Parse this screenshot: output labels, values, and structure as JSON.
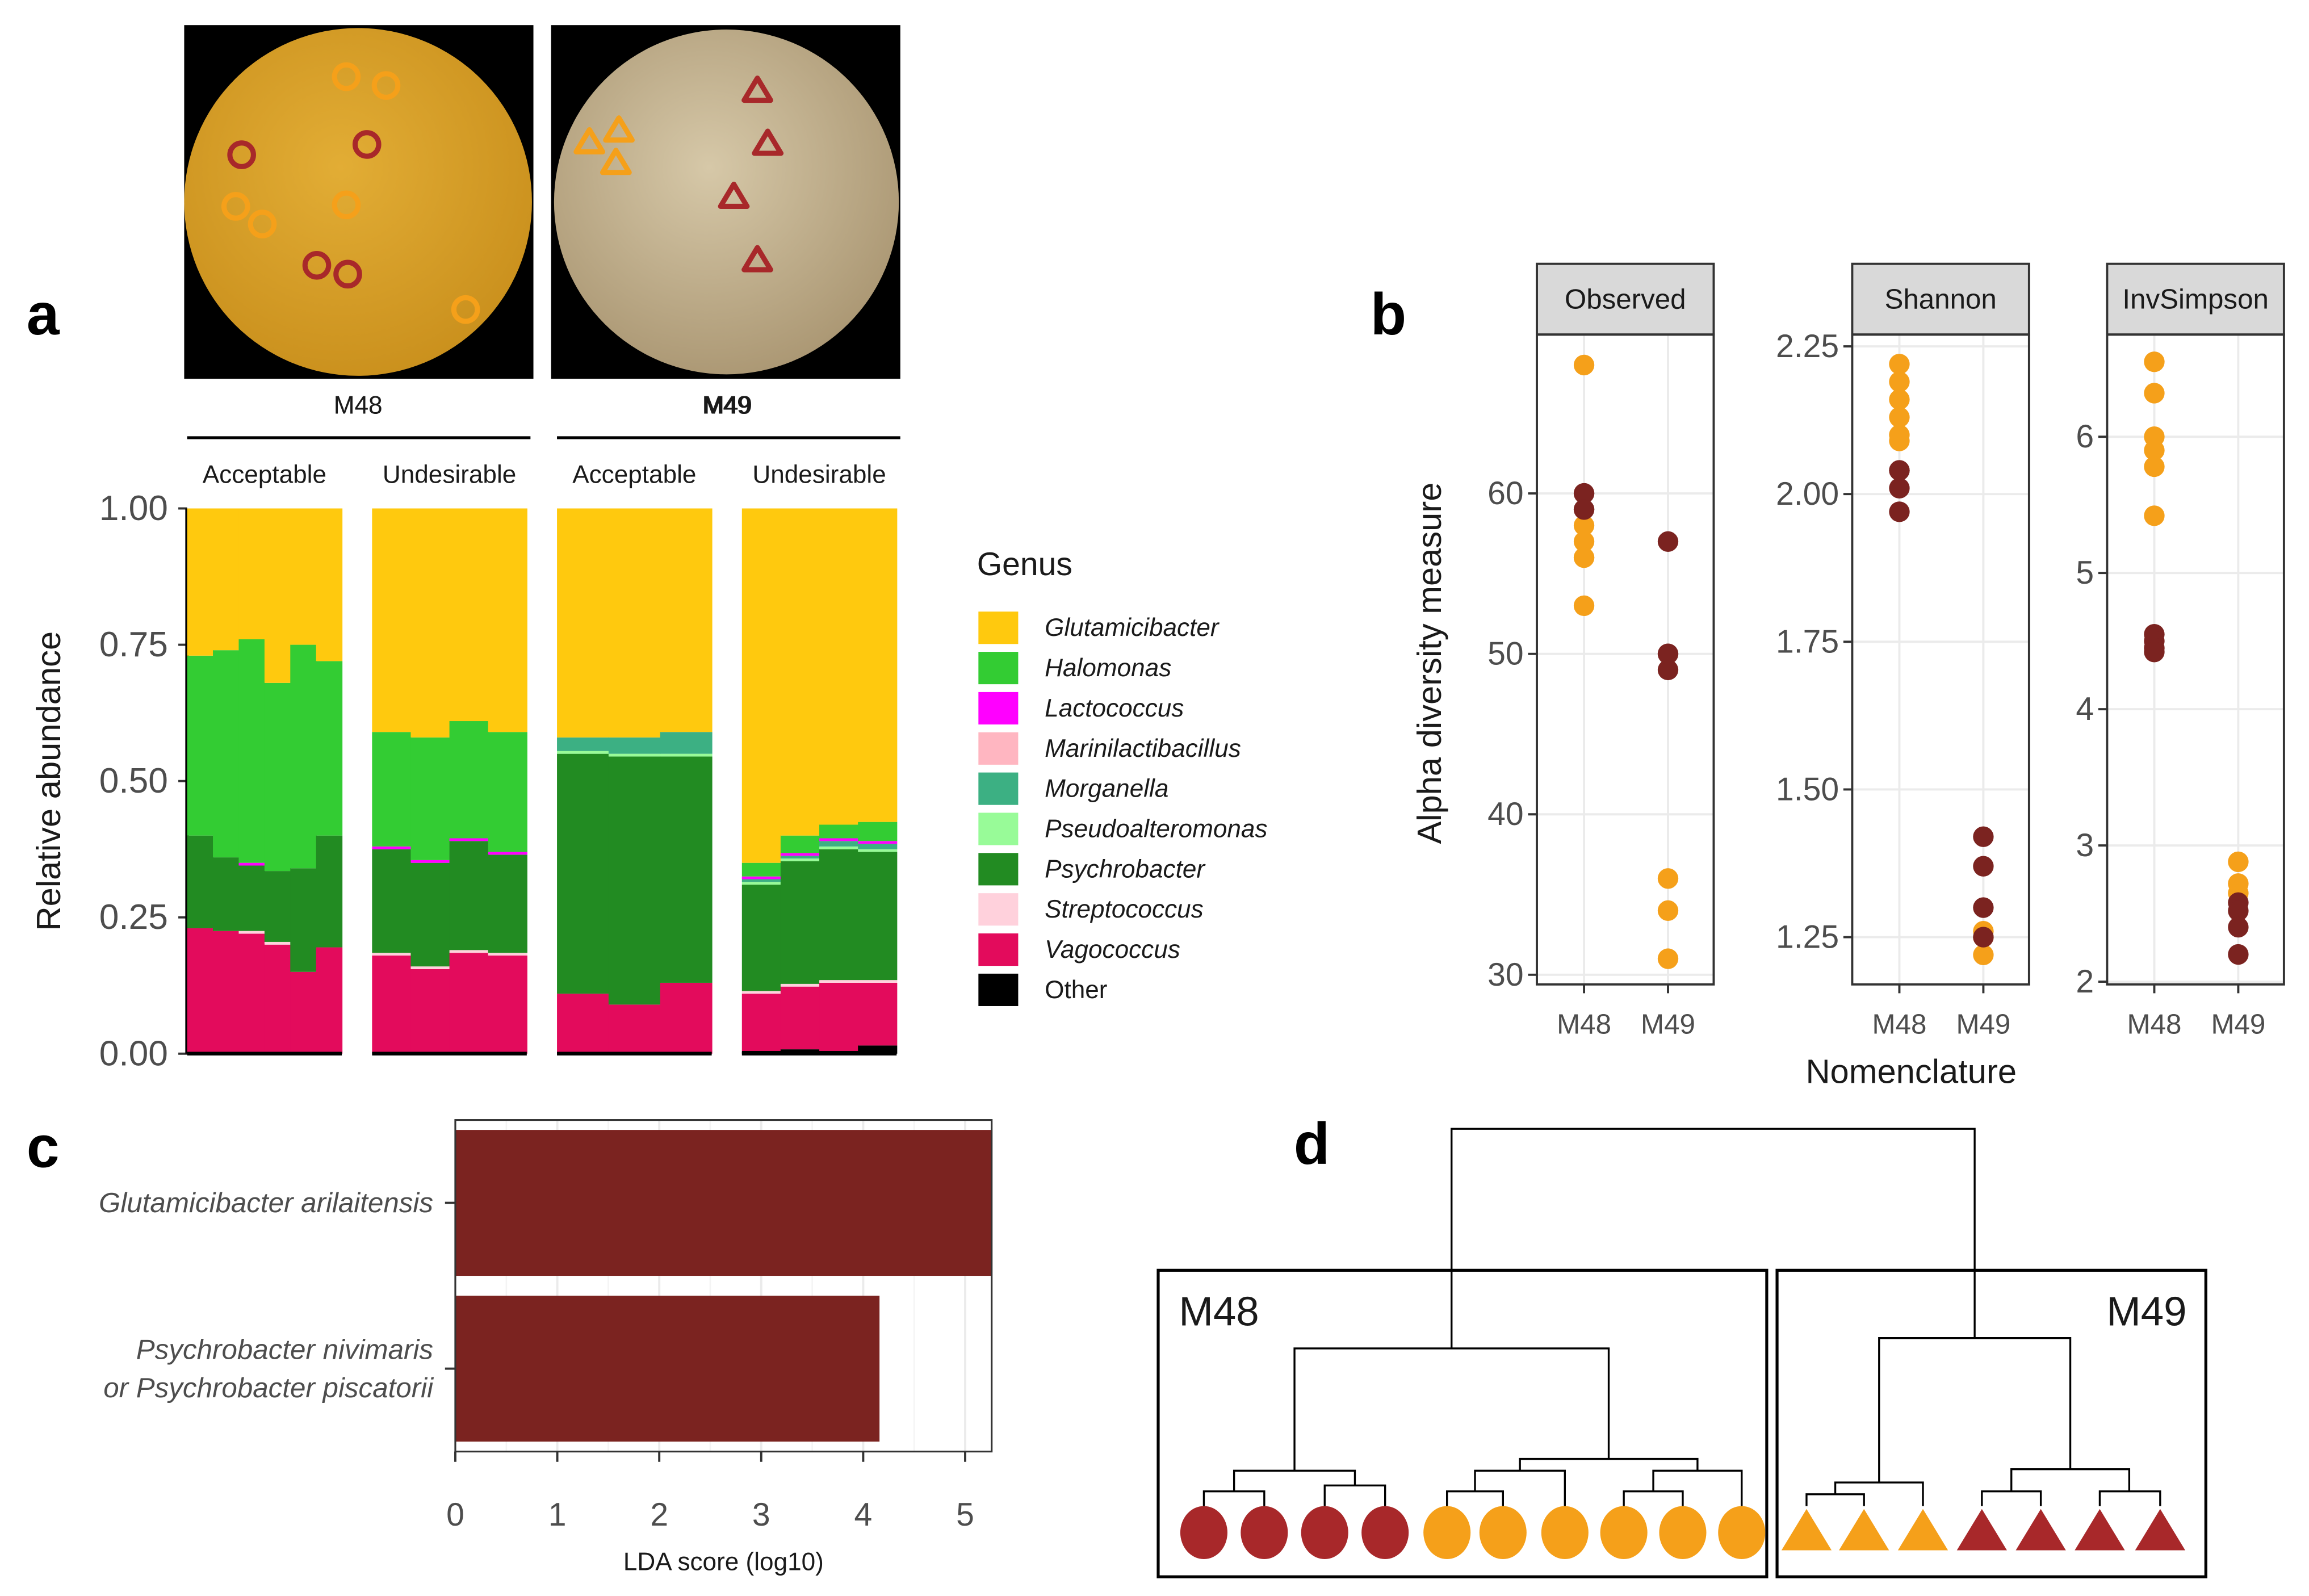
{
  "chart_data": [
    {
      "panel": "a",
      "type": "stacked_bar",
      "ylabel": "Relative abundance",
      "ylim": [
        0,
        1
      ],
      "yticks": [
        {
          "value": 0,
          "label": "0.00"
        },
        0.25,
        {
          "value": 0.5,
          "label": "0.50"
        },
        0.75,
        {
          "value": 1,
          "label": "1.00"
        }
      ],
      "legend_title": "Genus",
      "series": [
        {
          "name": "Glutamicibacter",
          "color": "#ffc90e"
        },
        {
          "name": "Halomonas",
          "color": "#33cc33"
        },
        {
          "name": "Lactococcus",
          "color": "#ff00ff"
        },
        {
          "name": "Marinilactibacillus",
          "color": "#ffb6c1"
        },
        {
          "name": "Morganella",
          "color": "#3cb083"
        },
        {
          "name": "Pseudoalteromonas",
          "color": "#98fb98"
        },
        {
          "name": "Psychrobacter",
          "color": "#228b22"
        },
        {
          "name": "Streptococcus",
          "color": "#ffd1dc"
        },
        {
          "name": "Vagococcus",
          "color": "#e30b5c"
        },
        {
          "name": "Other",
          "color": "#000000"
        }
      ],
      "facets": [
        {
          "label": "M48",
          "panels": [
            {
              "label": "Acceptable",
              "categories": [
                null,
                null,
                null,
                null,
                null,
                null
              ],
              "values": [
                [
                  0.27,
                  0.26,
                  0.24,
                  0.32,
                  0.25,
                  0.28
                ],
                [
                  0.33,
                  0.38,
                  0.41,
                  0.345,
                  0.41,
                  0.32
                ],
                [
                  0,
                  0,
                  0.005,
                  0,
                  0,
                  0
                ],
                [
                  0,
                  0,
                  0,
                  0,
                  0,
                  0
                ],
                [
                  0,
                  0,
                  0,
                  0,
                  0,
                  0
                ],
                [
                  0,
                  0,
                  0,
                  0,
                  0,
                  0
                ],
                [
                  0.17,
                  0.135,
                  0.12,
                  0.13,
                  0.19,
                  0.205
                ],
                [
                  0,
                  0,
                  0.005,
                  0.005,
                  0,
                  0
                ],
                [
                  0.23,
                  0.225,
                  0.22,
                  0.2,
                  0.15,
                  0.195
                ],
                [
                  0,
                  0,
                  0,
                  0,
                  0,
                  0
                ]
              ]
            },
            {
              "label": "Undesirable",
              "categories": [
                null,
                null,
                null,
                null
              ],
              "values": [
                [
                  0.41,
                  0.42,
                  0.39,
                  0.41
                ],
                [
                  0.21,
                  0.225,
                  0.215,
                  0.22
                ],
                [
                  0.005,
                  0.005,
                  0.005,
                  0.005
                ],
                [
                  0,
                  0,
                  0,
                  0
                ],
                [
                  0,
                  0,
                  0,
                  0
                ],
                [
                  0,
                  0,
                  0,
                  0
                ],
                [
                  0.19,
                  0.19,
                  0.2,
                  0.18
                ],
                [
                  0.005,
                  0.005,
                  0.005,
                  0.005
                ],
                [
                  0.18,
                  0.155,
                  0.185,
                  0.18
                ],
                [
                  0,
                  0,
                  0,
                  0
                ]
              ]
            }
          ]
        },
        {
          "label": "M49",
          "panels": [
            {
              "label": "Acceptable",
              "categories": [
                null,
                null,
                null
              ],
              "values": [
                [
                  0.42,
                  0.42,
                  0.41
                ],
                [
                  0,
                  0,
                  0
                ],
                [
                  0,
                  0,
                  0
                ],
                [
                  0,
                  0,
                  0
                ],
                [
                  0.025,
                  0.03,
                  0.04
                ],
                [
                  0.005,
                  0.005,
                  0.005
                ],
                [
                  0.44,
                  0.455,
                  0.415
                ],
                [
                  0,
                  0,
                  0
                ],
                [
                  0.11,
                  0.09,
                  0.13
                ],
                [
                  0,
                  0,
                  0
                ]
              ]
            },
            {
              "label": "Undesirable",
              "categories": [
                null,
                null,
                null,
                null
              ],
              "values": [
                [
                  0.65,
                  0.6,
                  0.58,
                  0.575
                ],
                [
                  0.025,
                  0.032,
                  0.025,
                  0.035
                ],
                [
                  0.005,
                  0.005,
                  0.005,
                  0.005
                ],
                [
                  0,
                  0,
                  0,
                  0
                ],
                [
                  0.005,
                  0.005,
                  0.01,
                  0.01
                ],
                [
                  0.005,
                  0.005,
                  0.005,
                  0.005
                ],
                [
                  0.195,
                  0.225,
                  0.24,
                  0.235
                ],
                [
                  0.005,
                  0.005,
                  0.005,
                  0.005
                ],
                [
                  0.105,
                  0.115,
                  0.125,
                  0.115
                ],
                [
                  0.005,
                  0.008,
                  0.005,
                  0.015
                ]
              ]
            }
          ]
        }
      ]
    },
    {
      "panel": "b",
      "type": "dot",
      "ylabel": "Alpha diversity measure",
      "xlabel": "Nomenclature",
      "categories": [
        "M48",
        "M49"
      ],
      "group_colors": [
        "#f5a01a",
        "#7b2320"
      ],
      "facets": [
        {
          "label": "Observed",
          "ylim": [
            29.4,
            69.9
          ],
          "yticks": [
            30,
            40,
            50,
            60
          ],
          "values": [
            [
              [
                68,
                58,
                57,
                56,
                53,
                56
              ],
              [
                36,
                34,
                31
              ]
            ],
            [
              [
                60,
                59,
                60,
                59
              ],
              [
                57,
                50,
                49,
                50
              ]
            ]
          ]
        },
        {
          "label": "Shannon",
          "ylim": [
            1.17,
            2.27
          ],
          "yticks": [
            {
              "value": 1.25,
              "label": "1.25"
            },
            {
              "value": 1.5,
              "label": "1.50"
            },
            {
              "value": 1.75,
              "label": "1.75"
            },
            {
              "value": 2,
              "label": "2.00"
            },
            {
              "value": 2.25,
              "label": "2.25"
            }
          ],
          "values": [
            [
              [
                2.22,
                2.19,
                2.16,
                2.13,
                2.1,
                2.09
              ],
              [
                1.26,
                1.22,
                1.25
              ]
            ],
            [
              [
                2.04,
                2.01,
                1.97,
                2.04
              ],
              [
                1.42,
                1.37,
                1.3,
                1.25
              ]
            ]
          ]
        },
        {
          "label": "InvSimpson",
          "ylim": [
            1.98,
            6.75
          ],
          "yticks": [
            2,
            3,
            4,
            5,
            6
          ],
          "values": [
            [
              [
                6.55,
                6.32,
                6.0,
                5.9,
                5.78,
                5.42
              ],
              [
                2.88,
                2.72,
                2.65
              ]
            ],
            [
              [
                4.55,
                4.5,
                4.45,
                4.42
              ],
              [
                2.58,
                2.52,
                2.4,
                2.2
              ]
            ]
          ]
        }
      ]
    },
    {
      "panel": "c",
      "type": "hbar",
      "xlabel": "LDA score (log10)",
      "categories": [
        [
          "Glutamicibacter arilaitensis"
        ],
        [
          "Psychrobacter nivimaris",
          "or Psychrobacter piscatorii"
        ]
      ],
      "values": [
        5.26,
        4.16
      ],
      "color": "#7b2320",
      "xlim": [
        0,
        5.26
      ],
      "xticks": [
        0,
        1,
        2,
        3,
        4,
        5
      ],
      "grid": true
    }
  ],
  "dendrogram": {
    "panel": "d",
    "clusters": [
      "M48",
      "M49"
    ]
  },
  "photos": {
    "labels": [
      "M48",
      "M49"
    ]
  }
}
